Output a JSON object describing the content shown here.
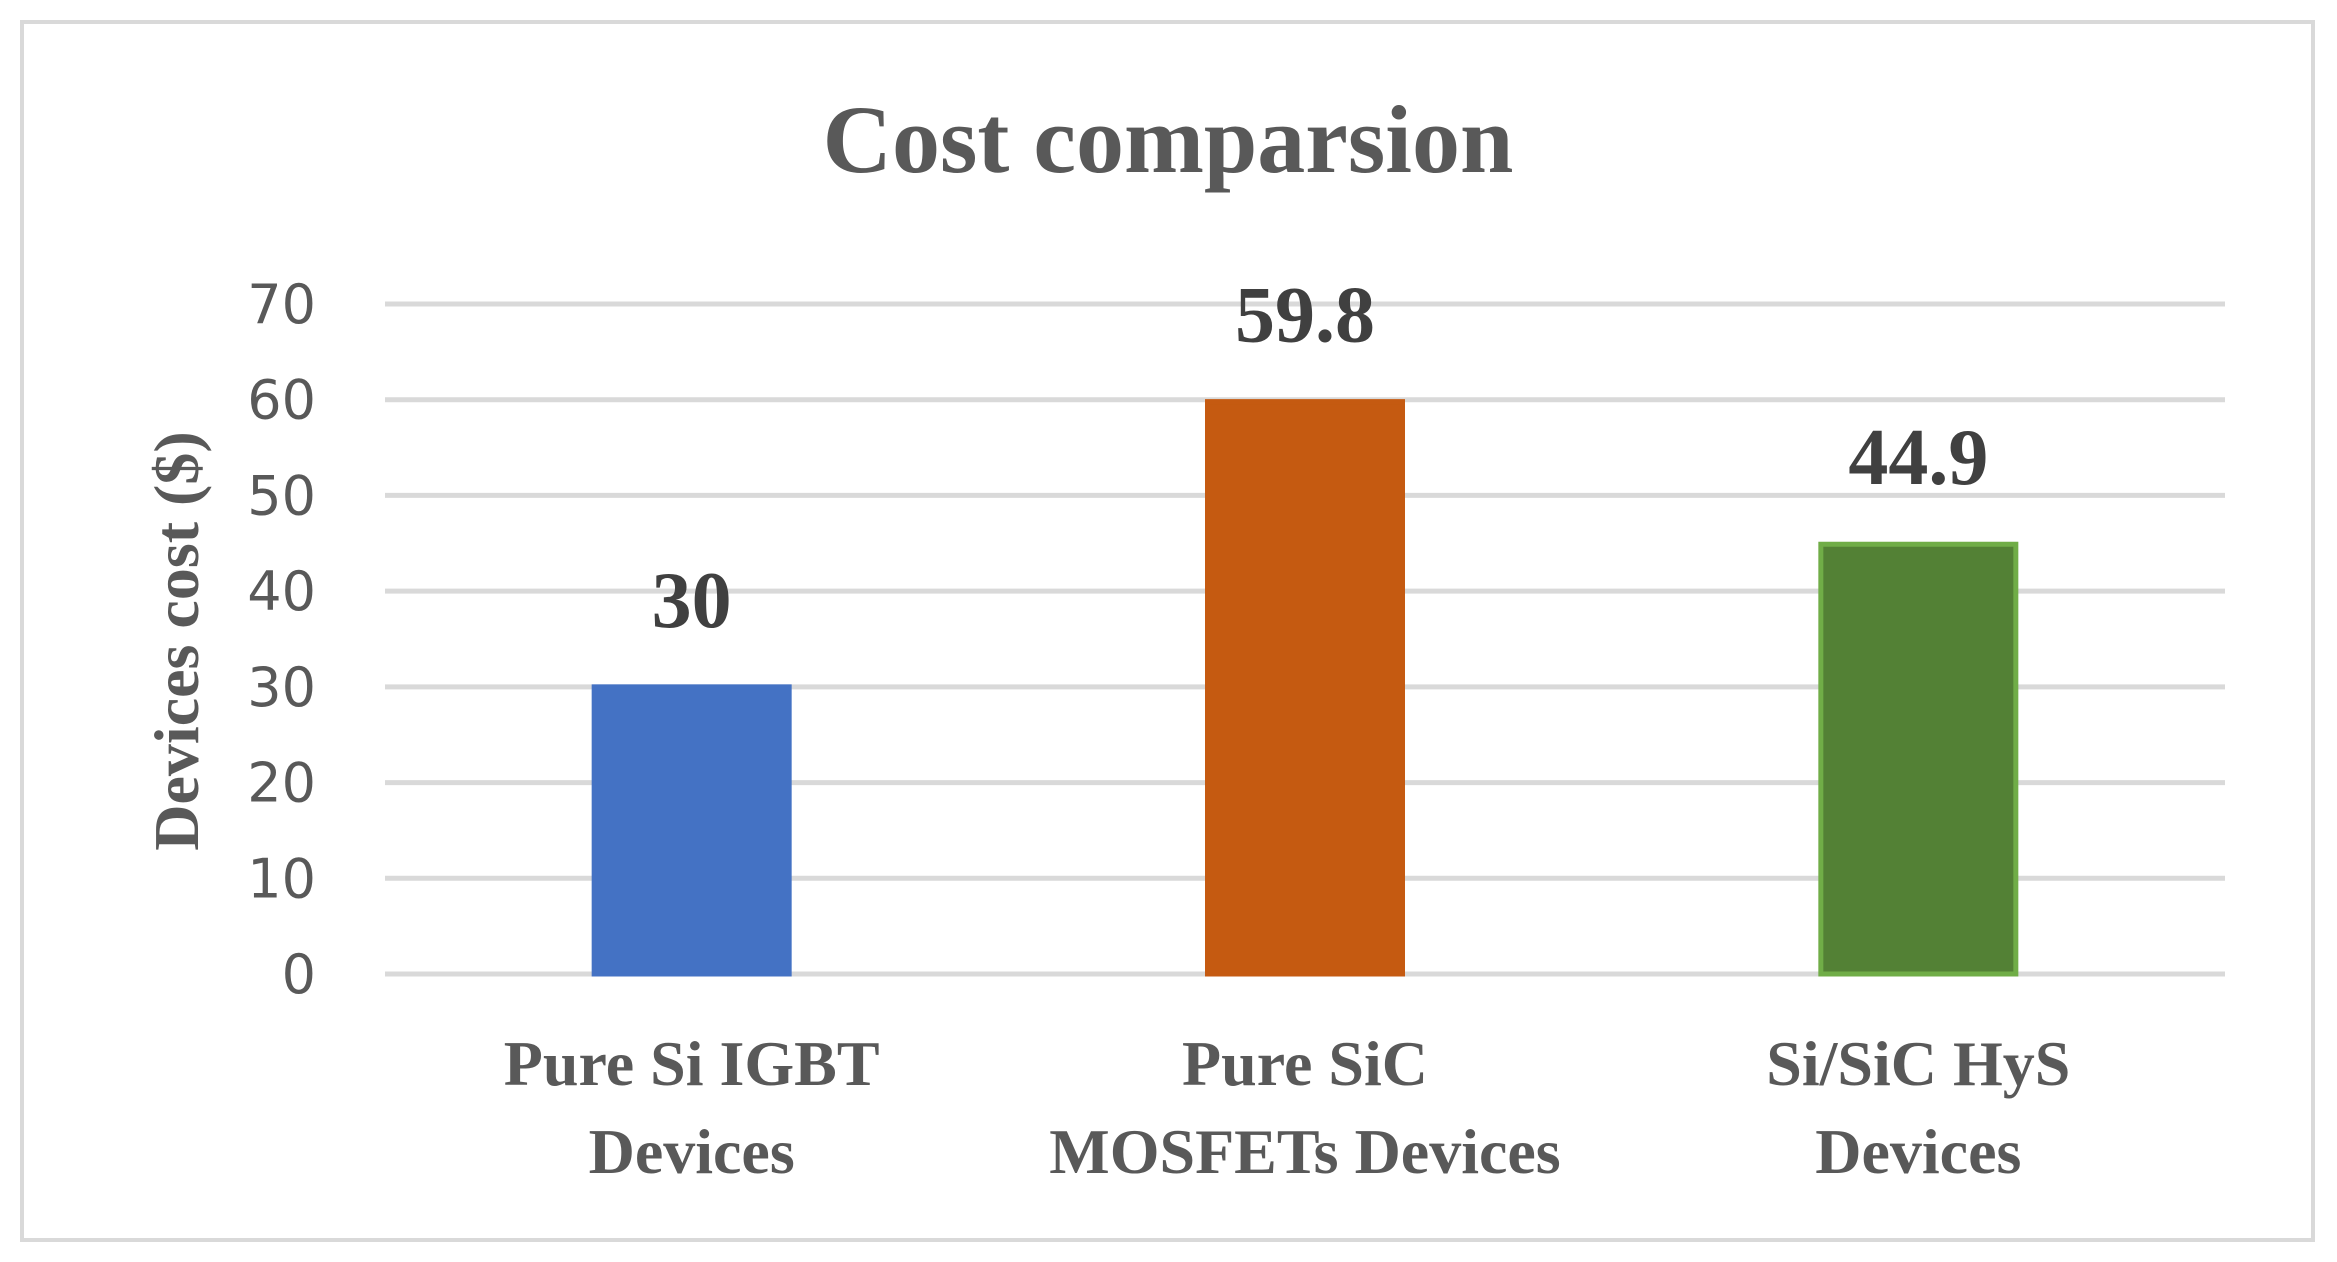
{
  "chart_data": {
    "type": "bar",
    "title": "Cost comparsion",
    "xlabel": "",
    "ylabel": "Devices cost ($)",
    "ylim": [
      0,
      70
    ],
    "yticks": [
      0,
      10,
      20,
      30,
      40,
      50,
      60,
      70
    ],
    "ytick_labels": [
      "0",
      "10",
      "20",
      "30",
      "40",
      "50",
      "60",
      "70"
    ],
    "grid": true,
    "legend": "none",
    "categories": [
      [
        "Pure Si IGBT",
        "Devices"
      ],
      [
        "Pure SiC",
        "MOSFETs Devices"
      ],
      [
        "Si/SiC HyS",
        "Devices"
      ]
    ],
    "values": [
      30,
      59.8,
      44.9
    ],
    "value_labels": [
      "30",
      "59.8",
      "44.9"
    ],
    "colors": [
      "#4472c4",
      "#c55a11",
      "#538135"
    ],
    "edge_colors": [
      "#4472c4",
      "#c55a11",
      "#70ad47"
    ]
  }
}
